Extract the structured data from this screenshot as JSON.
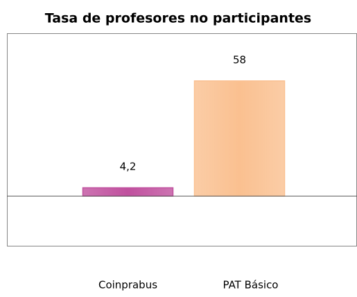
{
  "chart_data": {
    "type": "bar",
    "title": "Tasa de profesores no participantes",
    "categories": [
      "Coinprabus",
      "PAT Básico"
    ],
    "values": [
      4.2,
      58
    ],
    "value_labels": [
      "4,2",
      "58"
    ],
    "colors": [
      "#c0509e",
      "#fac090"
    ],
    "ylim": [
      -25,
      82
    ]
  }
}
